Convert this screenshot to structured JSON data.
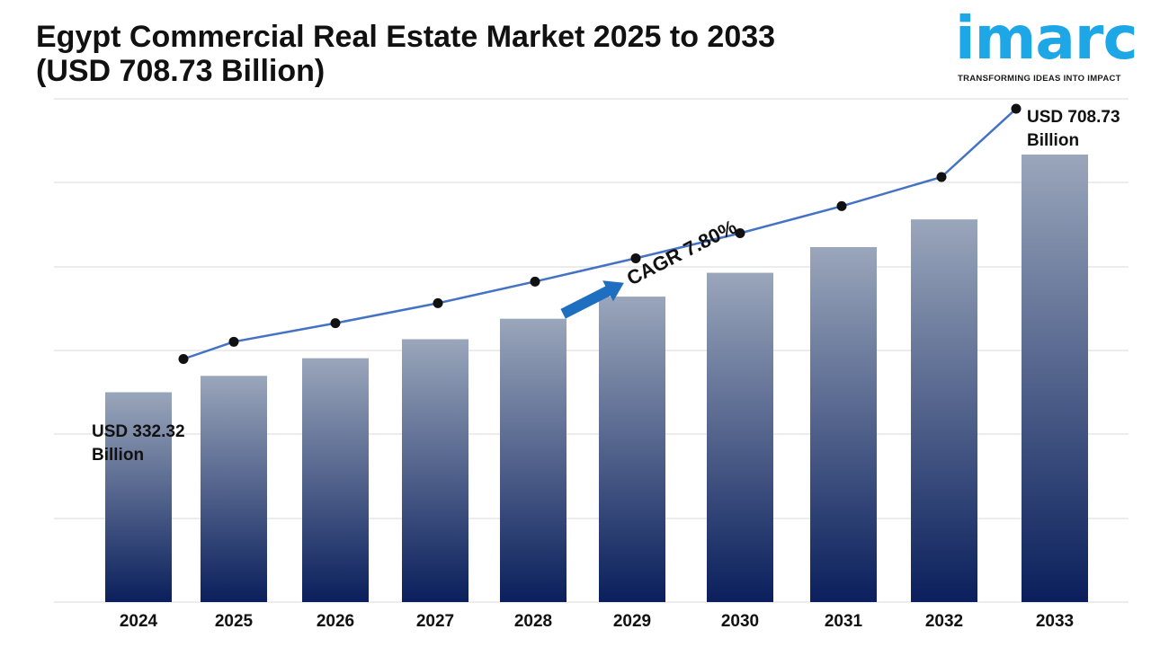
{
  "title": {
    "line1": "Egypt Commercial Real Estate Market 2025 to 2033",
    "line2": "(USD 708.73 Billion)"
  },
  "logo": {
    "name": "imarc",
    "tagline": "TRANSFORMING IDEAS INTO IMPACT",
    "color": "#1da7e6"
  },
  "colors": {
    "bar_top": "#9aa6bb",
    "bar_bottom": "#0a1f5c",
    "line": "#4472c4",
    "marker": "#111111",
    "arrow": "#1f6fc1",
    "grid": "#d9d9d9"
  },
  "annotations": {
    "start_value": "USD 332.32",
    "start_unit": "Billion",
    "end_value": "USD 708.73",
    "end_unit": "Billion",
    "cagr": "CAGR 7.80%"
  },
  "chart_data": {
    "type": "bar",
    "categories": [
      "2024",
      "2025",
      "2026",
      "2027",
      "2028",
      "2029",
      "2030",
      "2031",
      "2032",
      "2033"
    ],
    "series": [
      {
        "type": "bar",
        "values": [
          332.32,
          358.24,
          386.18,
          416.3,
          448.77,
          483.77,
          521.51,
          562.19,
          606.04,
          708.73
        ]
      },
      {
        "type": "line",
        "values": [
          332.32,
          358.24,
          386.18,
          416.3,
          448.77,
          483.77,
          521.51,
          562.19,
          606.04,
          708.73
        ]
      }
    ],
    "xlabel": "",
    "ylabel": "",
    "ylim": [
      0,
      800
    ],
    "grid": true,
    "legend": "none"
  }
}
